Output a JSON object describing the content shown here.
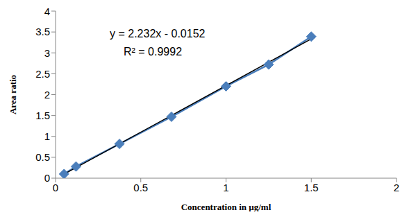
{
  "chart_data": {
    "type": "scatter",
    "x_label": "Concentration in µg/ml",
    "y_label": "Area ratio",
    "annotations": [
      "y = 2.232x - 0.0152",
      "R² = 0.9992"
    ],
    "xlim": [
      0,
      2
    ],
    "xticks": [
      0,
      0.5,
      1,
      1.5,
      2
    ],
    "ylim": [
      0,
      4
    ],
    "yticks": [
      0,
      0.5,
      1,
      1.5,
      2,
      2.5,
      3,
      3.5,
      4
    ],
    "grid": false,
    "series": [
      {
        "type": "line",
        "marker": "diamond",
        "color": "#4a7ebb",
        "x": [
          0.05,
          0.12,
          0.375,
          0.68,
          1.0,
          1.25,
          1.5
        ],
        "values": [
          0.1,
          0.28,
          0.82,
          1.47,
          2.2,
          2.72,
          3.39
        ]
      },
      {
        "type": "line",
        "marker": "none",
        "line_style": "solid",
        "color": "#000000",
        "x": [
          0.05,
          1.5
        ],
        "values": [
          0.0964,
          3.3328
        ]
      }
    ]
  }
}
